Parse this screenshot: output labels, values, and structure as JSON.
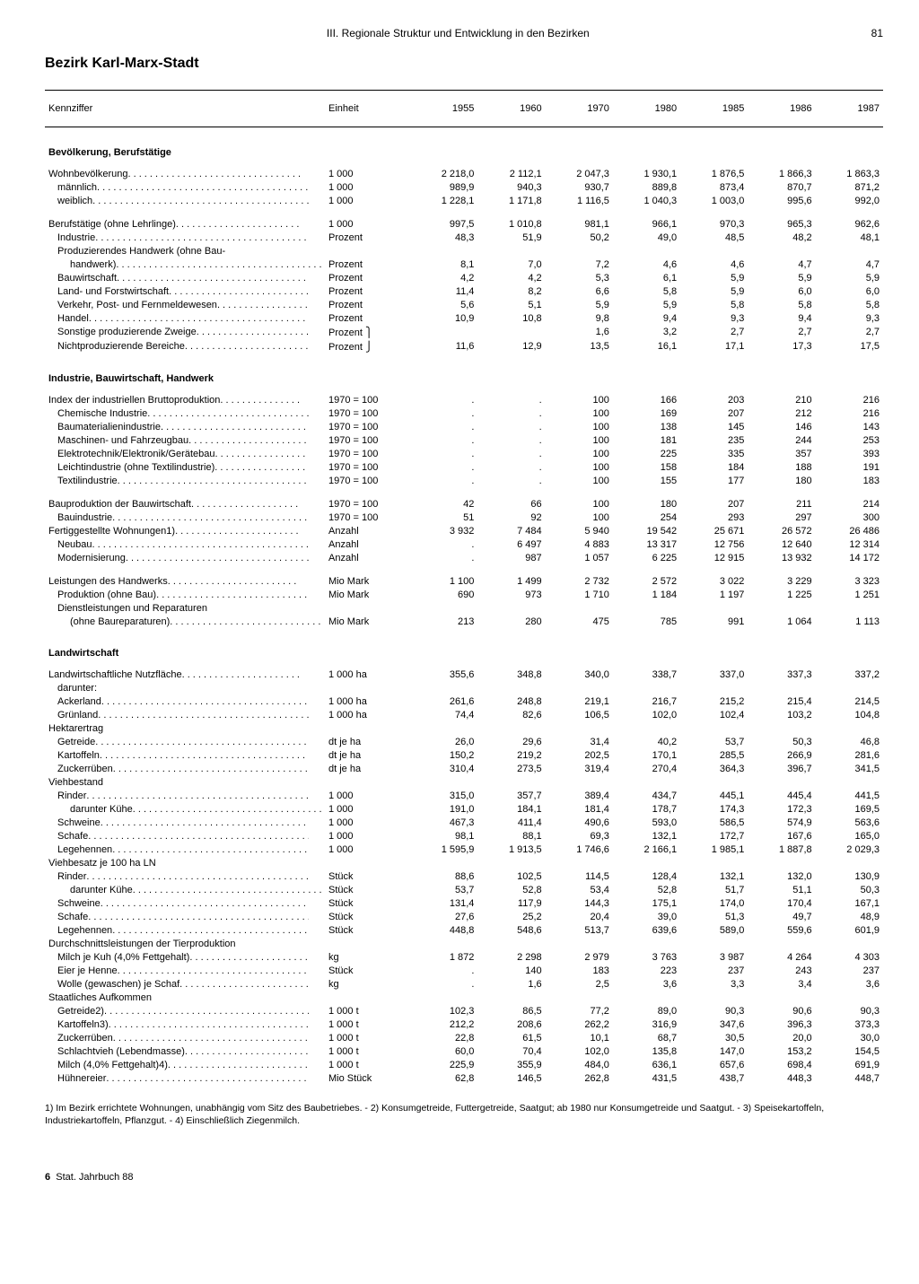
{
  "header": {
    "section": "III. Regionale Struktur und Entwicklung in den Bezirken",
    "page": "81"
  },
  "title": "Bezirk Karl-Marx-Stadt",
  "columns": {
    "label": "Kennziffer",
    "unit": "Einheit",
    "years": [
      "1955",
      "1960",
      "1970",
      "1980",
      "1985",
      "1986",
      "1987"
    ]
  },
  "sections": [
    {
      "head": "Bevölkerung, Berufstätige",
      "rows": [
        {
          "l": "Wohnbevölkerung",
          "u": "1 000",
          "v": [
            "2 218,0",
            "2 112,1",
            "2 047,3",
            "1 930,1",
            "1 876,5",
            "1 866,3",
            "1 863,3"
          ],
          "d": 1
        },
        {
          "l": "männlich",
          "u": "1 000",
          "v": [
            "989,9",
            "940,3",
            "930,7",
            "889,8",
            "873,4",
            "870,7",
            "871,2"
          ],
          "i": 1,
          "d": 1
        },
        {
          "l": "weiblich",
          "u": "1 000",
          "v": [
            "1 228,1",
            "1 171,8",
            "1 116,5",
            "1 040,3",
            "1 003,0",
            "995,6",
            "992,0"
          ],
          "i": 1,
          "d": 1
        },
        {
          "sp": 1
        },
        {
          "l": "Berufstätige (ohne Lehrlinge)",
          "u": "1 000",
          "v": [
            "997,5",
            "1 010,8",
            "981,1",
            "966,1",
            "970,3",
            "965,3",
            "962,6"
          ],
          "d": 1
        },
        {
          "l": "Industrie",
          "u": "Prozent",
          "v": [
            "48,3",
            "51,9",
            "50,2",
            "49,0",
            "48,5",
            "48,2",
            "48,1"
          ],
          "i": 1,
          "d": 1
        },
        {
          "l": "Produzierendes Handwerk (ohne Bau-",
          "u": "",
          "v": [
            "",
            "",
            "",
            "",
            "",
            "",
            ""
          ],
          "i": 1
        },
        {
          "l": "handwerk)",
          "u": "Prozent",
          "v": [
            "8,1",
            "7,0",
            "7,2",
            "4,6",
            "4,6",
            "4,7",
            "4,7"
          ],
          "i": 2,
          "d": 1
        },
        {
          "l": "Bauwirtschaft",
          "u": "Prozent",
          "v": [
            "4,2",
            "4,2",
            "5,3",
            "6,1",
            "5,9",
            "5,9",
            "5,9"
          ],
          "i": 1,
          "d": 1
        },
        {
          "l": "Land- und Forstwirtschaft",
          "u": "Prozent",
          "v": [
            "11,4",
            "8,2",
            "6,6",
            "5,8",
            "5,9",
            "6,0",
            "6,0"
          ],
          "i": 1,
          "d": 1
        },
        {
          "l": "Verkehr, Post- und Fernmeldewesen",
          "u": "Prozent",
          "v": [
            "5,6",
            "5,1",
            "5,9",
            "5,9",
            "5,8",
            "5,8",
            "5,8"
          ],
          "i": 1,
          "d": 1
        },
        {
          "l": "Handel",
          "u": "Prozent",
          "v": [
            "10,9",
            "10,8",
            "9,8",
            "9,4",
            "9,3",
            "9,4",
            "9,3"
          ],
          "i": 1,
          "d": 1
        },
        {
          "l": "Sonstige produzierende Zweige",
          "u": "Prozent ⎫",
          "v": [
            "",
            "",
            "1,6",
            "3,2",
            "2,7",
            "2,7",
            "2,7"
          ],
          "i": 1,
          "d": 1
        },
        {
          "l": "Nichtproduzierende Bereiche",
          "u": "Prozent ⎭",
          "v": [
            "11,6",
            "12,9",
            "13,5",
            "16,1",
            "17,1",
            "17,3",
            "17,5"
          ],
          "i": 1,
          "d": 1
        }
      ]
    },
    {
      "head": "Industrie, Bauwirtschaft, Handwerk",
      "rows": [
        {
          "l": "Index der industriellen Bruttoproduktion",
          "u": "1970 = 100",
          "v": [
            ".",
            ".",
            "100",
            "166",
            "203",
            "210",
            "216"
          ],
          "d": 1
        },
        {
          "l": "Chemische Industrie",
          "u": "1970 = 100",
          "v": [
            ".",
            ".",
            "100",
            "169",
            "207",
            "212",
            "216"
          ],
          "i": 1,
          "d": 1
        },
        {
          "l": "Baumaterialienindustrie",
          "u": "1970 = 100",
          "v": [
            ".",
            ".",
            "100",
            "138",
            "145",
            "146",
            "143"
          ],
          "i": 1,
          "d": 1
        },
        {
          "l": "Maschinen- und Fahrzeugbau",
          "u": "1970 = 100",
          "v": [
            ".",
            ".",
            "100",
            "181",
            "235",
            "244",
            "253"
          ],
          "i": 1,
          "d": 1
        },
        {
          "l": "Elektrotechnik/Elektronik/Gerätebau",
          "u": "1970 = 100",
          "v": [
            ".",
            ".",
            "100",
            "225",
            "335",
            "357",
            "393"
          ],
          "i": 1,
          "d": 1
        },
        {
          "l": "Leichtindustrie (ohne Textilindustrie)",
          "u": "1970 = 100",
          "v": [
            ".",
            ".",
            "100",
            "158",
            "184",
            "188",
            "191"
          ],
          "i": 1,
          "d": 1
        },
        {
          "l": "Textilindustrie",
          "u": "1970 = 100",
          "v": [
            ".",
            ".",
            "100",
            "155",
            "177",
            "180",
            "183"
          ],
          "i": 1,
          "d": 1
        },
        {
          "sp": 1
        },
        {
          "l": "Bauproduktion der Bauwirtschaft",
          "u": "1970 = 100",
          "v": [
            "42",
            "66",
            "100",
            "180",
            "207",
            "211",
            "214"
          ],
          "d": 1
        },
        {
          "l": "Bauindustrie",
          "u": "1970 = 100",
          "v": [
            "51",
            "92",
            "100",
            "254",
            "293",
            "297",
            "300"
          ],
          "i": 1,
          "d": 1
        },
        {
          "l": "Fertiggestellte Wohnungen1)",
          "u": "Anzahl",
          "v": [
            "3 932",
            "7 484",
            "5 940",
            "19 542",
            "25 671",
            "26 572",
            "26 486"
          ],
          "d": 1
        },
        {
          "l": "Neubau",
          "u": "Anzahl",
          "v": [
            ".",
            "6 497",
            "4 883",
            "13 317",
            "12 756",
            "12 640",
            "12 314"
          ],
          "i": 1,
          "d": 1
        },
        {
          "l": "Modernisierung",
          "u": "Anzahl",
          "v": [
            ".",
            "987",
            "1 057",
            "6 225",
            "12 915",
            "13 932",
            "14 172"
          ],
          "i": 1,
          "d": 1
        },
        {
          "sp": 1
        },
        {
          "l": "Leistungen des Handwerks",
          "u": "Mio Mark",
          "v": [
            "1 100",
            "1 499",
            "2 732",
            "2 572",
            "3 022",
            "3 229",
            "3 323"
          ],
          "d": 1
        },
        {
          "l": "Produktion (ohne Bau)",
          "u": "Mio Mark",
          "v": [
            "690",
            "973",
            "1 710",
            "1 184",
            "1 197",
            "1 225",
            "1 251"
          ],
          "i": 1,
          "d": 1
        },
        {
          "l": "Dienstleistungen und Reparaturen",
          "u": "",
          "v": [
            "",
            "",
            "",
            "",
            "",
            "",
            ""
          ],
          "i": 1
        },
        {
          "l": "(ohne Baureparaturen)",
          "u": "Mio Mark",
          "v": [
            "213",
            "280",
            "475",
            "785",
            "991",
            "1 064",
            "1 113"
          ],
          "i": 2,
          "d": 1
        }
      ]
    },
    {
      "head": "Landwirtschaft",
      "rows": [
        {
          "l": "Landwirtschaftliche Nutzfläche",
          "u": "1 000 ha",
          "v": [
            "355,6",
            "348,8",
            "340,0",
            "338,7",
            "337,0",
            "337,3",
            "337,2"
          ],
          "d": 1
        },
        {
          "l": "darunter:",
          "u": "",
          "v": [
            "",
            "",
            "",
            "",
            "",
            "",
            ""
          ],
          "i": 1
        },
        {
          "l": "Ackerland",
          "u": "1 000 ha",
          "v": [
            "261,6",
            "248,8",
            "219,1",
            "216,7",
            "215,2",
            "215,4",
            "214,5"
          ],
          "i": 1,
          "d": 1
        },
        {
          "l": "Grünland",
          "u": "1 000 ha",
          "v": [
            "74,4",
            "82,6",
            "106,5",
            "102,0",
            "102,4",
            "103,2",
            "104,8"
          ],
          "i": 1,
          "d": 1
        },
        {
          "l": "Hektarertrag",
          "u": "",
          "v": [
            "",
            "",
            "",
            "",
            "",
            "",
            ""
          ]
        },
        {
          "l": "Getreide",
          "u": "dt je ha",
          "v": [
            "26,0",
            "29,6",
            "31,4",
            "40,2",
            "53,7",
            "50,3",
            "46,8"
          ],
          "i": 1,
          "d": 1
        },
        {
          "l": "Kartoffeln",
          "u": "dt je ha",
          "v": [
            "150,2",
            "219,2",
            "202,5",
            "170,1",
            "285,5",
            "266,9",
            "281,6"
          ],
          "i": 1,
          "d": 1
        },
        {
          "l": "Zuckerrüben",
          "u": "dt je ha",
          "v": [
            "310,4",
            "273,5",
            "319,4",
            "270,4",
            "364,3",
            "396,7",
            "341,5"
          ],
          "i": 1,
          "d": 1
        },
        {
          "l": "Viehbestand",
          "u": "",
          "v": [
            "",
            "",
            "",
            "",
            "",
            "",
            ""
          ]
        },
        {
          "l": "Rinder",
          "u": "1 000",
          "v": [
            "315,0",
            "357,7",
            "389,4",
            "434,7",
            "445,1",
            "445,4",
            "441,5"
          ],
          "i": 1,
          "d": 1
        },
        {
          "l": "darunter Kühe",
          "u": "1 000",
          "v": [
            "191,0",
            "184,1",
            "181,4",
            "178,7",
            "174,3",
            "172,3",
            "169,5"
          ],
          "i": 2,
          "d": 1
        },
        {
          "l": "Schweine",
          "u": "1 000",
          "v": [
            "467,3",
            "411,4",
            "490,6",
            "593,0",
            "586,5",
            "574,9",
            "563,6"
          ],
          "i": 1,
          "d": 1
        },
        {
          "l": "Schafe",
          "u": "1 000",
          "v": [
            "98,1",
            "88,1",
            "69,3",
            "132,1",
            "172,7",
            "167,6",
            "165,0"
          ],
          "i": 1,
          "d": 1
        },
        {
          "l": "Legehennen",
          "u": "1 000",
          "v": [
            "1 595,9",
            "1 913,5",
            "1 746,6",
            "2 166,1",
            "1 985,1",
            "1 887,8",
            "2 029,3"
          ],
          "i": 1,
          "d": 1
        },
        {
          "l": "Viehbesatz je 100 ha LN",
          "u": "",
          "v": [
            "",
            "",
            "",
            "",
            "",
            "",
            ""
          ]
        },
        {
          "l": "Rinder",
          "u": "Stück",
          "v": [
            "88,6",
            "102,5",
            "114,5",
            "128,4",
            "132,1",
            "132,0",
            "130,9"
          ],
          "i": 1,
          "d": 1
        },
        {
          "l": "darunter Kühe",
          "u": "Stück",
          "v": [
            "53,7",
            "52,8",
            "53,4",
            "52,8",
            "51,7",
            "51,1",
            "50,3"
          ],
          "i": 2,
          "d": 1
        },
        {
          "l": "Schweine",
          "u": "Stück",
          "v": [
            "131,4",
            "117,9",
            "144,3",
            "175,1",
            "174,0",
            "170,4",
            "167,1"
          ],
          "i": 1,
          "d": 1
        },
        {
          "l": "Schafe",
          "u": "Stück",
          "v": [
            "27,6",
            "25,2",
            "20,4",
            "39,0",
            "51,3",
            "49,7",
            "48,9"
          ],
          "i": 1,
          "d": 1
        },
        {
          "l": "Legehennen",
          "u": "Stück",
          "v": [
            "448,8",
            "548,6",
            "513,7",
            "639,6",
            "589,0",
            "559,6",
            "601,9"
          ],
          "i": 1,
          "d": 1
        },
        {
          "l": "Durchschnittsleistungen der Tierproduktion",
          "u": "",
          "v": [
            "",
            "",
            "",
            "",
            "",
            "",
            ""
          ]
        },
        {
          "l": "Milch je Kuh (4,0% Fettgehalt)",
          "u": "kg",
          "v": [
            "1 872",
            "2 298",
            "2 979",
            "3 763",
            "3 987",
            "4 264",
            "4 303"
          ],
          "i": 1,
          "d": 1
        },
        {
          "l": "Eier je Henne",
          "u": "Stück",
          "v": [
            ".",
            "140",
            "183",
            "223",
            "237",
            "243",
            "237"
          ],
          "i": 1,
          "d": 1
        },
        {
          "l": "Wolle (gewaschen) je Schaf",
          "u": "kg",
          "v": [
            ".",
            "1,6",
            "2,5",
            "3,6",
            "3,3",
            "3,4",
            "3,6"
          ],
          "i": 1,
          "d": 1
        },
        {
          "l": "Staatliches Aufkommen",
          "u": "",
          "v": [
            "",
            "",
            "",
            "",
            "",
            "",
            ""
          ]
        },
        {
          "l": "Getreide2)",
          "u": "1 000 t",
          "v": [
            "102,3",
            "86,5",
            "77,2",
            "89,0",
            "90,3",
            "90,6",
            "90,3"
          ],
          "i": 1,
          "d": 1
        },
        {
          "l": "Kartoffeln3)",
          "u": "1 000 t",
          "v": [
            "212,2",
            "208,6",
            "262,2",
            "316,9",
            "347,6",
            "396,3",
            "373,3"
          ],
          "i": 1,
          "d": 1
        },
        {
          "l": "Zuckerrüben",
          "u": "1 000 t",
          "v": [
            "22,8",
            "61,5",
            "10,1",
            "68,7",
            "30,5",
            "20,0",
            "30,0"
          ],
          "i": 1,
          "d": 1
        },
        {
          "l": "Schlachtvieh (Lebendmasse)",
          "u": "1 000 t",
          "v": [
            "60,0",
            "70,4",
            "102,0",
            "135,8",
            "147,0",
            "153,2",
            "154,5"
          ],
          "i": 1,
          "d": 1
        },
        {
          "l": "Milch (4,0% Fettgehalt)4)",
          "u": "1 000 t",
          "v": [
            "225,9",
            "355,9",
            "484,0",
            "636,1",
            "657,6",
            "698,4",
            "691,9"
          ],
          "i": 1,
          "d": 1
        },
        {
          "l": "Hühnereier",
          "u": "Mio Stück",
          "v": [
            "62,8",
            "146,5",
            "262,8",
            "431,5",
            "438,7",
            "448,3",
            "448,7"
          ],
          "i": 1,
          "d": 1
        }
      ]
    }
  ],
  "footnotes": "1) Im Bezirk errichtete Wohnungen, unabhängig vom Sitz des Baubetriebes. - 2) Konsumgetreide, Futtergetreide, Saatgut; ab 1980 nur Konsumgetreide und Saatgut. - 3) Speisekartoffeln, Industriekartoffeln, Pflanzgut. - 4) Einschließlich Ziegenmilch.",
  "footer": {
    "sig": "6",
    "pub": "Stat. Jahrbuch 88"
  }
}
